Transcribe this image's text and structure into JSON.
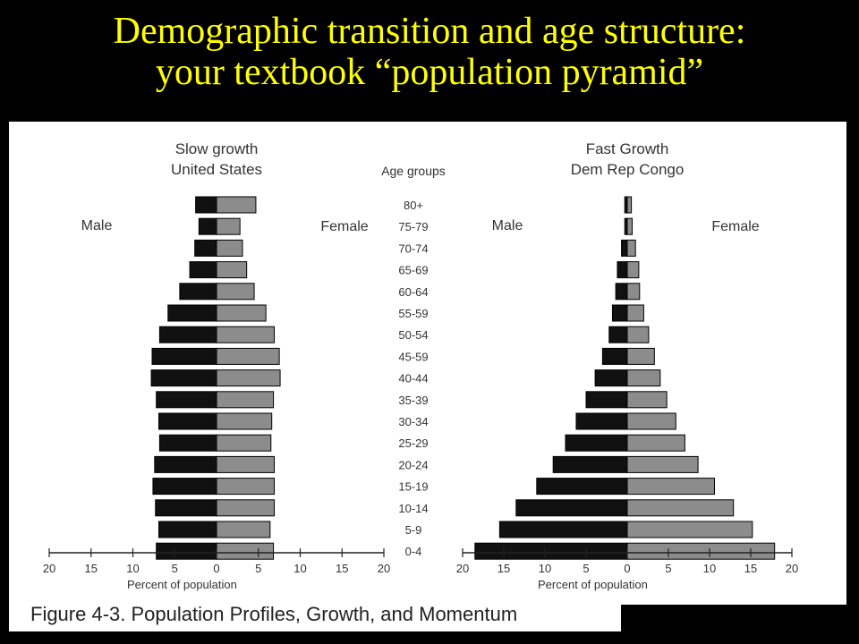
{
  "slide": {
    "title_line1": "Demographic transition and age structure:",
    "title_line2": "your textbook “population pyramid”"
  },
  "figure": {
    "caption": "Figure 4-3. Population Profiles, Growth, and Momentum"
  },
  "chart_data": [
    {
      "type": "bar",
      "orientation": "horizontal-pyramid",
      "title_line1": "Slow growth",
      "title_line2": "United States",
      "xlabel": "Percent of population",
      "left_label": "Male",
      "right_label": "Female",
      "age_groups_header": "Age groups",
      "categories": [
        "80+",
        "75-79",
        "70-74",
        "65-69",
        "60-64",
        "55-59",
        "50-54",
        "45-59",
        "40-44",
        "35-39",
        "30-34",
        "25-29",
        "20-24",
        "15-19",
        "10-14",
        "5-9",
        "0-4"
      ],
      "series": [
        {
          "name": "Male",
          "color": "#111111",
          "values": [
            2.5,
            2.1,
            2.6,
            3.2,
            4.4,
            5.8,
            6.8,
            7.7,
            7.8,
            7.2,
            6.9,
            6.8,
            7.4,
            7.6,
            7.3,
            6.9,
            7.2
          ]
        },
        {
          "name": "Female",
          "color": "#8c8c8c",
          "values": [
            4.7,
            2.8,
            3.1,
            3.6,
            4.5,
            5.9,
            6.9,
            7.5,
            7.6,
            6.8,
            6.6,
            6.5,
            6.9,
            6.9,
            6.9,
            6.4,
            6.8
          ]
        }
      ],
      "xlim": [
        -20,
        20
      ],
      "tick_labels": [
        "20",
        "15",
        "10",
        "5",
        "0",
        "5",
        "10",
        "15",
        "20"
      ]
    },
    {
      "type": "bar",
      "orientation": "horizontal-pyramid",
      "title_line1": "Fast Growth",
      "title_line2": "Dem Rep Congo",
      "xlabel": "Percent of population",
      "left_label": "Male",
      "right_label": "Female",
      "categories": [
        "80+",
        "75-79",
        "70-74",
        "65-69",
        "60-64",
        "55-59",
        "50-54",
        "45-59",
        "40-44",
        "35-39",
        "30-34",
        "25-29",
        "20-24",
        "15-19",
        "10-14",
        "5-9",
        "0-4"
      ],
      "series": [
        {
          "name": "Male",
          "color": "#111111",
          "values": [
            0.3,
            0.3,
            0.7,
            1.2,
            1.4,
            1.8,
            2.2,
            3.0,
            3.9,
            5.0,
            6.2,
            7.5,
            9.0,
            11.0,
            13.5,
            15.5,
            18.5
          ]
        },
        {
          "name": "Female",
          "color": "#8c8c8c",
          "values": [
            0.5,
            0.6,
            1.0,
            1.4,
            1.5,
            2.0,
            2.6,
            3.3,
            4.0,
            4.8,
            5.9,
            7.0,
            8.6,
            10.6,
            12.9,
            15.2,
            17.9
          ]
        }
      ],
      "xlim": [
        -20,
        20
      ],
      "tick_labels": [
        "20",
        "15",
        "10",
        "5",
        "0",
        "5",
        "10",
        "15",
        "20"
      ]
    }
  ]
}
